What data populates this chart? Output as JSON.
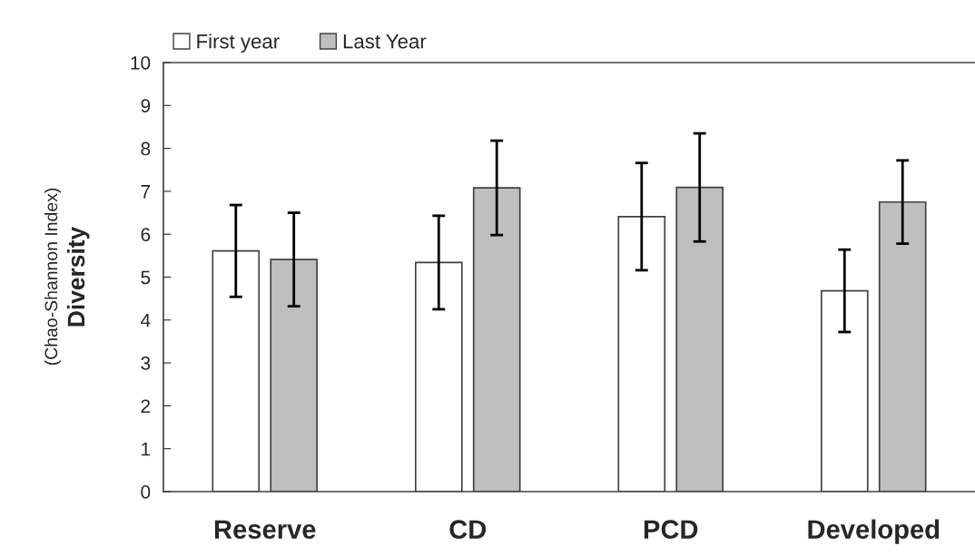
{
  "chart_data": {
    "type": "bar",
    "ylabel": "Diversity",
    "annotations": [
      "(Chao-Shannon Index)"
    ],
    "categories": [
      "Reserve",
      "CD",
      "PCD",
      "Developed"
    ],
    "series": [
      {
        "name": "First year",
        "color": "#ffffff",
        "values": [
          5.61,
          5.34,
          6.41,
          4.68
        ],
        "errors": [
          1.07,
          1.09,
          1.25,
          0.96
        ]
      },
      {
        "name": "Last Year",
        "color": "#bfbfbf",
        "values": [
          5.41,
          7.08,
          7.09,
          6.75
        ],
        "errors": [
          1.09,
          1.1,
          1.26,
          0.97
        ]
      }
    ],
    "ylim": [
      0,
      10
    ],
    "yticks": [
      0,
      1,
      2,
      3,
      4,
      5,
      6,
      7,
      8,
      9,
      10
    ],
    "grid": false,
    "legend": "top left"
  }
}
